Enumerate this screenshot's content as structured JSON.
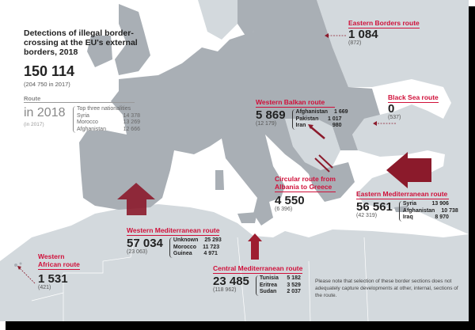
{
  "title": "Detections of illegal border-crossing at the EU's external borders, 2018",
  "total": "150 114",
  "total_previous": "(204 750 in 2017)",
  "legend": {
    "route_label": "Route",
    "year_label": "in 2018",
    "prev_label": "(in 2017)",
    "nationalities_label": "Top three nationalities",
    "nationalities": [
      {
        "name": "Syria",
        "value": "14 378"
      },
      {
        "name": "Morocco",
        "value": "13 269"
      },
      {
        "name": "Afghanistan",
        "value": "12 666"
      }
    ]
  },
  "routes": {
    "eastern_borders": {
      "label": "Eastern Borders route",
      "value": "1 084",
      "previous": "(872)"
    },
    "western_balkan": {
      "label": "Western Balkan route",
      "value": "5 869",
      "previous": "(12 179)",
      "nationalities": [
        {
          "name": "Afghanistan",
          "value": "1 669"
        },
        {
          "name": "Pakistan",
          "value": "1 017"
        },
        {
          "name": "Iran",
          "value": "980"
        }
      ]
    },
    "black_sea": {
      "label": "Black Sea route",
      "value": "0",
      "previous": "(537)"
    },
    "circular": {
      "label_line1": "Circular route from",
      "label_line2": "Albania to Greece",
      "value": "4 550",
      "previous": "(6 396)"
    },
    "eastern_med": {
      "label": "Eastern Mediterranean route",
      "value": "56 561",
      "previous": "(42 319)",
      "nationalities": [
        {
          "name": "Syria",
          "value": "13 906"
        },
        {
          "name": "Afghanistan",
          "value": "10 738"
        },
        {
          "name": "Iraq",
          "value": "8 970"
        }
      ]
    },
    "western_med": {
      "label": "Western Mediterranean route",
      "value": "57 034",
      "previous": "(23 063)",
      "nationalities": [
        {
          "name": "Unknown",
          "value": "25 293"
        },
        {
          "name": "Morocco",
          "value": "11 723"
        },
        {
          "name": "Guinea",
          "value": "4 971"
        }
      ]
    },
    "central_med": {
      "label": "Central Mediterranean route",
      "value": "23 485",
      "previous": "(118 962)",
      "nationalities": [
        {
          "name": "Tunisia",
          "value": "5 182"
        },
        {
          "name": "Eritrea",
          "value": "3 529"
        },
        {
          "name": "Sudan",
          "value": "2 037"
        }
      ]
    },
    "western_african": {
      "label_line1": "Western",
      "label_line2": "African route",
      "value": "1 531",
      "previous": "(421)"
    }
  },
  "note": "Please note that selection of these border sections does not adequately capture developments at other, internal, sections of the route.",
  "colors": {
    "accent": "#d0103a",
    "arrow": "#8b1a2b",
    "eu_land": "#a9afb5",
    "non_eu_land": "#d2d8dc",
    "sea": "#ffffff"
  }
}
